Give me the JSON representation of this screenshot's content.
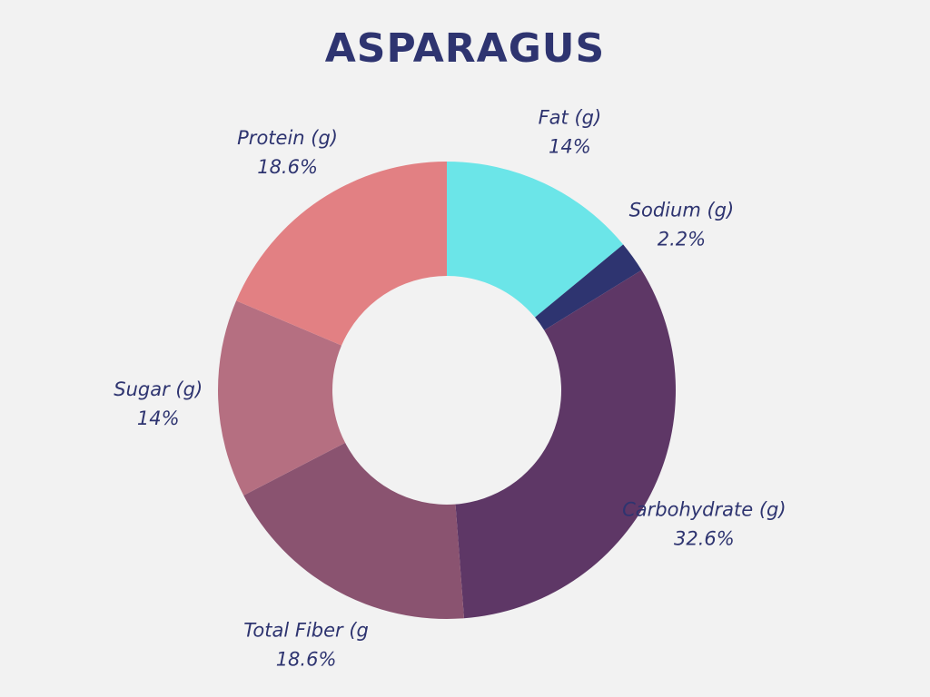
{
  "chart_data": {
    "type": "pie",
    "title": "ASPARAGUS",
    "donut": true,
    "slices": [
      {
        "name": "Fat (g)",
        "value": 14,
        "label": "14%",
        "color": "#6be5e8"
      },
      {
        "name": "Sodium (g)",
        "value": 2.2,
        "label": "2.2%",
        "color": "#2e3470"
      },
      {
        "name": "Carbohydrate (g)",
        "value": 32.6,
        "label": "32.6%",
        "color": "#5e3766"
      },
      {
        "name": "Total Fiber (g",
        "value": 18.6,
        "label": "18.6%",
        "color": "#8a5370"
      },
      {
        "name": "Sugar (g)",
        "value": 14,
        "label": "14%",
        "color": "#b56f81"
      },
      {
        "name": "Protein (g)",
        "value": 18.6,
        "label": "18.6%",
        "color": "#e28083"
      }
    ],
    "start_angle_deg": 0,
    "direction": "clockwise",
    "label_color": "#2e3470"
  }
}
